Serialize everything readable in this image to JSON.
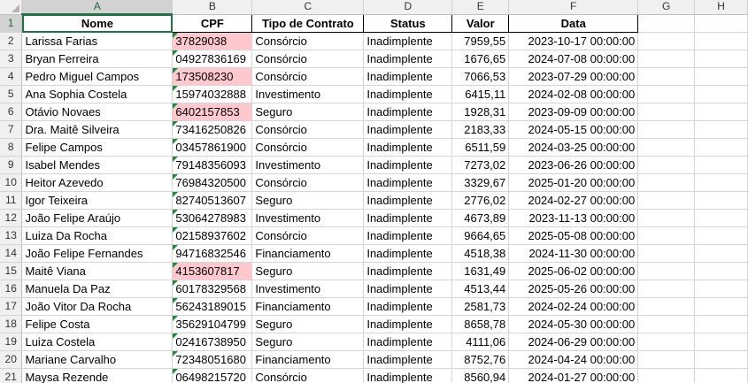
{
  "columns": [
    "A",
    "B",
    "C",
    "D",
    "E",
    "F",
    "G",
    "H"
  ],
  "headers": {
    "nome": "Nome",
    "cpf": "CPF",
    "tipo": "Tipo de Contrato",
    "status": "Status",
    "valor": "Valor",
    "data": "Data"
  },
  "rows": [
    {
      "n": "2",
      "nome": "Larissa Farias",
      "cpf": "37829038",
      "tipo": "Consórcio",
      "status": "Inadimplente",
      "valor": "7959,55",
      "data": "2023-10-17 00:00:00",
      "hl": true
    },
    {
      "n": "3",
      "nome": "Bryan Ferreira",
      "cpf": "04927836169",
      "tipo": "Consórcio",
      "status": "Inadimplente",
      "valor": "1676,65",
      "data": "2024-07-08 00:00:00",
      "hl": false
    },
    {
      "n": "4",
      "nome": "Pedro Miguel Campos",
      "cpf": "173508230",
      "tipo": "Consórcio",
      "status": "Inadimplente",
      "valor": "7066,53",
      "data": "2023-07-29 00:00:00",
      "hl": true
    },
    {
      "n": "5",
      "nome": "Ana Sophia Costela",
      "cpf": "15974032888",
      "tipo": "Investimento",
      "status": "Inadimplente",
      "valor": "6415,11",
      "data": "2024-02-08 00:00:00",
      "hl": false
    },
    {
      "n": "6",
      "nome": "Otávio Novaes",
      "cpf": "6402157853",
      "tipo": "Seguro",
      "status": "Inadimplente",
      "valor": "1928,31",
      "data": "2023-09-09 00:00:00",
      "hl": true
    },
    {
      "n": "7",
      "nome": "Dra. Maitê Silveira",
      "cpf": "73416250826",
      "tipo": "Consórcio",
      "status": "Inadimplente",
      "valor": "2183,33",
      "data": "2024-05-15 00:00:00",
      "hl": false
    },
    {
      "n": "8",
      "nome": "Felipe Campos",
      "cpf": "03457861900",
      "tipo": "Consórcio",
      "status": "Inadimplente",
      "valor": "6511,59",
      "data": "2024-03-25 00:00:00",
      "hl": false
    },
    {
      "n": "9",
      "nome": "Isabel Mendes",
      "cpf": "79148356093",
      "tipo": "Investimento",
      "status": "Inadimplente",
      "valor": "7273,02",
      "data": "2023-06-26 00:00:00",
      "hl": false
    },
    {
      "n": "10",
      "nome": "Heitor Azevedo",
      "cpf": "76984320500",
      "tipo": "Consórcio",
      "status": "Inadimplente",
      "valor": "3329,67",
      "data": "2025-01-20 00:00:00",
      "hl": false
    },
    {
      "n": "11",
      "nome": "Igor Teixeira",
      "cpf": "82740513607",
      "tipo": "Seguro",
      "status": "Inadimplente",
      "valor": "2776,02",
      "data": "2024-02-27 00:00:00",
      "hl": false
    },
    {
      "n": "12",
      "nome": "João Felipe Araújo",
      "cpf": "53064278983",
      "tipo": "Investimento",
      "status": "Inadimplente",
      "valor": "4673,89",
      "data": "2023-11-13 00:00:00",
      "hl": false
    },
    {
      "n": "13",
      "nome": "Luiza Da Rocha",
      "cpf": "02158937602",
      "tipo": "Consórcio",
      "status": "Inadimplente",
      "valor": "9664,65",
      "data": "2025-05-08 00:00:00",
      "hl": false
    },
    {
      "n": "14",
      "nome": "João Felipe Fernandes",
      "cpf": "94716832546",
      "tipo": "Financiamento",
      "status": "Inadimplente",
      "valor": "4518,38",
      "data": "2024-11-30 00:00:00",
      "hl": false
    },
    {
      "n": "15",
      "nome": "Maitê Viana",
      "cpf": "4153607817",
      "tipo": "Seguro",
      "status": "Inadimplente",
      "valor": "1631,49",
      "data": "2025-06-02 00:00:00",
      "hl": true
    },
    {
      "n": "16",
      "nome": "Manuela Da Paz",
      "cpf": "60178329568",
      "tipo": "Investimento",
      "status": "Inadimplente",
      "valor": "4513,44",
      "data": "2025-05-26 00:00:00",
      "hl": false
    },
    {
      "n": "17",
      "nome": "João Vitor Da Rocha",
      "cpf": "56243189015",
      "tipo": "Financiamento",
      "status": "Inadimplente",
      "valor": "2581,73",
      "data": "2024-02-24 00:00:00",
      "hl": false
    },
    {
      "n": "18",
      "nome": "Felipe Costa",
      "cpf": "35629104799",
      "tipo": "Seguro",
      "status": "Inadimplente",
      "valor": "8658,78",
      "data": "2024-05-30 00:00:00",
      "hl": false
    },
    {
      "n": "19",
      "nome": "Luiza Costela",
      "cpf": "02416738950",
      "tipo": "Seguro",
      "status": "Inadimplente",
      "valor": "4111,06",
      "data": "2024-06-29 00:00:00",
      "hl": false
    },
    {
      "n": "20",
      "nome": "Mariane Carvalho",
      "cpf": "72348051680",
      "tipo": "Financiamento",
      "status": "Inadimplente",
      "valor": "8752,76",
      "data": "2024-04-24 00:00:00",
      "hl": false
    },
    {
      "n": "21",
      "nome": "Maysa Rezende",
      "cpf": "06498215720",
      "tipo": "Consórcio",
      "status": "Inadimplente",
      "valor": "8560,94",
      "data": "2024-01-27 00:00:00",
      "hl": false
    }
  ],
  "header_row_number": "1",
  "colors": {
    "highlight_fill": "#ffc7ce",
    "selection_green": "#217346",
    "text_marker": "#1e8a3c"
  }
}
